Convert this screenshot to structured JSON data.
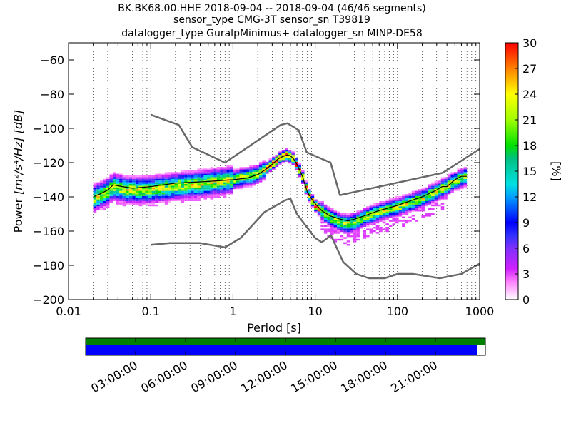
{
  "chart_data": [
    {
      "type": "heatmap",
      "subtype": "probabilistic-power-spectral-density",
      "title_lines": [
        "BK.BK68.00.HHE   2018-09-04 -- 2018-09-04  (46/46 segments)",
        "sensor_type CMG-3T sensor_sn T39819",
        "datalogger_type GuralpMinimus+ datalogger_sn MINP-DE58"
      ],
      "xlabel": "Period [s]",
      "ylabel_prefix": "Power ",
      "ylabel_units": "[m²/s⁴/Hz] [dB]",
      "x_scale": "log",
      "xlim": [
        0.01,
        1000
      ],
      "ylim": [
        -200,
        -50
      ],
      "x_ticks": [
        0.01,
        0.1,
        1,
        10,
        100,
        1000
      ],
      "x_tick_labels": [
        "0.01",
        "0.1",
        "1",
        "10",
        "100",
        "1000"
      ],
      "y_ticks": [
        -200,
        -180,
        -160,
        -140,
        -120,
        -100,
        -80,
        -60
      ],
      "y_tick_labels": [
        "−200",
        "−180",
        "−160",
        "−140",
        "−120",
        "−100",
        "−80",
        "−60"
      ],
      "grid": "dotted vertical lines at each log decade subdivision",
      "colorbar": {
        "label": "[%]",
        "range": [
          0,
          30
        ],
        "ticks": [
          0,
          3,
          6,
          9,
          12,
          15,
          18,
          21,
          24,
          27,
          30
        ],
        "tick_labels": [
          "0",
          "3",
          "6",
          "9",
          "12",
          "15",
          "18",
          "21",
          "24",
          "27",
          "30"
        ],
        "colormap": "pqlx (white → magenta → purple → blue → cyan → green → yellow → orange → red)"
      },
      "noise_models": {
        "color": "#696969",
        "high_noise_model": [
          [
            0.1,
            -92
          ],
          [
            0.22,
            -98
          ],
          [
            0.32,
            -111
          ],
          [
            0.8,
            -120
          ],
          [
            3.8,
            -98
          ],
          [
            4.6,
            -97
          ],
          [
            6.3,
            -101
          ],
          [
            7.9,
            -114
          ],
          [
            15.4,
            -120
          ],
          [
            20,
            -139
          ],
          [
            354,
            -126
          ],
          [
            1000,
            -112
          ]
        ],
        "low_noise_model": [
          [
            0.1,
            -168
          ],
          [
            0.17,
            -167
          ],
          [
            0.4,
            -167
          ],
          [
            0.8,
            -169.5
          ],
          [
            1.24,
            -164
          ],
          [
            2.4,
            -149
          ],
          [
            4.3,
            -142
          ],
          [
            5,
            -141
          ],
          [
            6,
            -150
          ],
          [
            10,
            -164
          ],
          [
            12,
            -166.5
          ],
          [
            15.6,
            -162.5
          ],
          [
            21.9,
            -178
          ],
          [
            31.6,
            -185
          ],
          [
            45,
            -187.5
          ],
          [
            70,
            -187.5
          ],
          [
            101,
            -185
          ],
          [
            154,
            -185
          ],
          [
            328,
            -187.5
          ],
          [
            600,
            -185
          ],
          [
            1000,
            -179
          ]
        ]
      },
      "mean_curve": {
        "color": "#000000",
        "points": [
          [
            0.02,
            -140
          ],
          [
            0.025,
            -138
          ],
          [
            0.03,
            -136
          ],
          [
            0.035,
            -133
          ],
          [
            0.045,
            -134
          ],
          [
            0.06,
            -135
          ],
          [
            0.1,
            -134
          ],
          [
            0.2,
            -132
          ],
          [
            0.5,
            -131
          ],
          [
            1,
            -130
          ],
          [
            1.5,
            -129
          ],
          [
            2,
            -127
          ],
          [
            2.5,
            -124
          ],
          [
            3,
            -121
          ],
          [
            3.5,
            -118
          ],
          [
            4,
            -116.5
          ],
          [
            4.6,
            -115.5
          ],
          [
            5,
            -116
          ],
          [
            5.5,
            -118
          ],
          [
            6,
            -121
          ],
          [
            7,
            -128
          ],
          [
            8,
            -137
          ],
          [
            9,
            -141
          ],
          [
            10,
            -144
          ],
          [
            12,
            -148
          ],
          [
            15,
            -151
          ],
          [
            20,
            -153
          ],
          [
            25,
            -154
          ],
          [
            30,
            -153
          ],
          [
            40,
            -151
          ],
          [
            60,
            -148
          ],
          [
            100,
            -145
          ],
          [
            150,
            -142
          ],
          [
            200,
            -140
          ],
          [
            300,
            -136
          ],
          [
            350,
            -134
          ],
          [
            400,
            -134
          ],
          [
            500,
            -130
          ],
          [
            600,
            -128
          ],
          [
            700,
            -128
          ]
        ]
      },
      "density_ridge": [
        [
          0.02,
          -141
        ],
        [
          0.03,
          -137
        ],
        [
          0.035,
          -134
        ],
        [
          0.05,
          -136
        ],
        [
          0.1,
          -136
        ],
        [
          0.2,
          -134
        ],
        [
          0.5,
          -132
        ],
        [
          1,
          -130
        ],
        [
          2,
          -127
        ],
        [
          3,
          -121
        ],
        [
          4,
          -116.5
        ],
        [
          4.6,
          -115.5
        ],
        [
          5.5,
          -118
        ],
        [
          7,
          -128
        ],
        [
          8,
          -137
        ],
        [
          10,
          -145
        ],
        [
          15,
          -152
        ],
        [
          20,
          -155
        ],
        [
          25,
          -156
        ],
        [
          30,
          -155
        ],
        [
          40,
          -152
        ],
        [
          60,
          -149
        ],
        [
          100,
          -146
        ],
        [
          200,
          -141
        ],
        [
          300,
          -137
        ],
        [
          500,
          -131
        ],
        [
          700,
          -128
        ]
      ]
    },
    {
      "type": "timeline",
      "description_of_axis": "data availability on 2018-09-04",
      "time_ticks_hours": [
        3,
        6,
        9,
        12,
        15,
        18,
        21
      ],
      "time_tick_labels": [
        "03:00:00",
        "06:00:00",
        "09:00:00",
        "12:00:00",
        "15:00:00",
        "18:00:00",
        "21:00:00"
      ],
      "time_range_hours": [
        0,
        24
      ],
      "data_coverage_hours": [
        0,
        24
      ],
      "psd_segment_coverage_hours": [
        0,
        23.5
      ],
      "data_color": "#008000",
      "segment_color": "#0000ff"
    }
  ]
}
